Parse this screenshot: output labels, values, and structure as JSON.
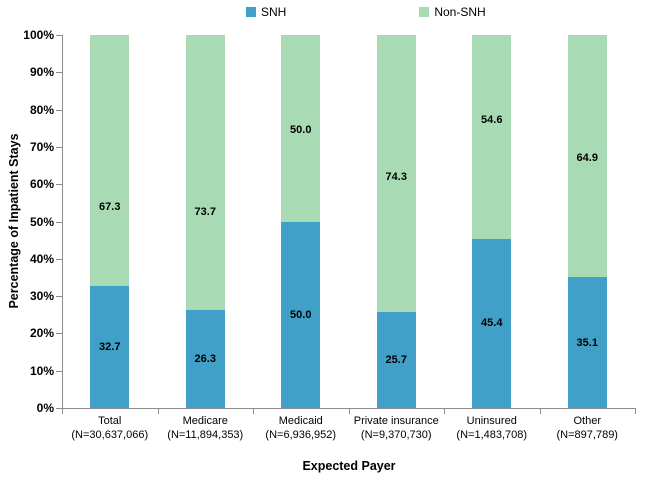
{
  "chart_data": {
    "type": "bar",
    "subtype": "stacked-100-percent-column",
    "title": "",
    "xlabel": "Expected Payer",
    "ylabel": "Percentage of Inpatient Stays",
    "ylim": [
      0,
      100
    ],
    "ytick_step": 10,
    "ytick_labels": [
      "0%",
      "10%",
      "20%",
      "30%",
      "40%",
      "50%",
      "60%",
      "70%",
      "80%",
      "90%",
      "100%"
    ],
    "grid": false,
    "legend_position": "top-center",
    "categories": [
      "Total",
      "Medicare",
      "Medicaid",
      "Private insurance",
      "Uninsured",
      "Other"
    ],
    "category_sublabels": [
      "(N=30,637,066)",
      "(N=11,894,353)",
      "(N=6,936,952)",
      "(N=9,370,730)",
      "(N=1,483,708)",
      "(N=897,789)"
    ],
    "series": [
      {
        "name": "SNH",
        "color": "#41A0C7",
        "values": [
          32.7,
          26.3,
          50.0,
          25.7,
          45.4,
          35.1
        ],
        "label_dy": [
          0,
          0,
          0,
          0,
          0,
          0
        ]
      },
      {
        "name": "Non-SNH",
        "color": "#A8DBB4",
        "values": [
          67.3,
          73.7,
          50.0,
          74.3,
          54.6,
          64.9
        ],
        "label_dy": [
          46,
          40,
          2,
          3,
          -17,
          2
        ]
      }
    ],
    "value_label_decimals": 1,
    "axis_color": "#8C8C8C",
    "text_color": "#000000"
  }
}
